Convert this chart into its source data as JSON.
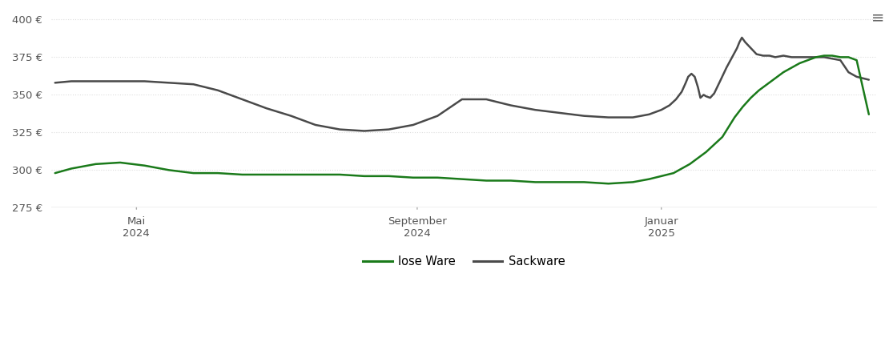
{
  "ylim": [
    275,
    405
  ],
  "yticks": [
    275,
    300,
    325,
    350,
    375,
    400
  ],
  "xtick_labels": [
    "Mai\n2024",
    "September\n2024",
    "Januar\n2025"
  ],
  "xtick_positions": [
    0.1,
    0.445,
    0.745
  ],
  "lose_ware_color": "#1a7a1a",
  "sackware_color": "#4a4a4a",
  "background_color": "#ffffff",
  "legend_labels": [
    "lose Ware",
    "Sackware"
  ],
  "lose_ware_x": [
    0.0,
    0.02,
    0.05,
    0.08,
    0.11,
    0.14,
    0.17,
    0.2,
    0.23,
    0.26,
    0.29,
    0.32,
    0.35,
    0.38,
    0.41,
    0.44,
    0.47,
    0.5,
    0.53,
    0.56,
    0.59,
    0.62,
    0.65,
    0.68,
    0.71,
    0.73,
    0.745,
    0.76,
    0.78,
    0.8,
    0.82,
    0.835,
    0.845,
    0.855,
    0.865,
    0.875,
    0.885,
    0.895,
    0.905,
    0.915,
    0.925,
    0.935,
    0.945,
    0.955,
    0.965,
    0.975,
    0.985,
    1.0
  ],
  "lose_ware_y": [
    298,
    301,
    304,
    305,
    303,
    300,
    298,
    298,
    297,
    297,
    297,
    297,
    297,
    296,
    296,
    295,
    295,
    294,
    293,
    293,
    292,
    292,
    292,
    291,
    292,
    294,
    296,
    298,
    304,
    312,
    322,
    335,
    342,
    348,
    353,
    357,
    361,
    365,
    368,
    371,
    373,
    375,
    376,
    376,
    375,
    375,
    373,
    337
  ],
  "sackware_x": [
    0.0,
    0.02,
    0.05,
    0.08,
    0.11,
    0.14,
    0.17,
    0.2,
    0.23,
    0.26,
    0.29,
    0.32,
    0.35,
    0.38,
    0.41,
    0.44,
    0.47,
    0.5,
    0.53,
    0.56,
    0.59,
    0.62,
    0.65,
    0.68,
    0.71,
    0.73,
    0.745,
    0.755,
    0.763,
    0.77,
    0.775,
    0.778,
    0.782,
    0.786,
    0.79,
    0.793,
    0.797,
    0.8,
    0.805,
    0.81,
    0.818,
    0.825,
    0.832,
    0.838,
    0.841,
    0.844,
    0.848,
    0.855,
    0.862,
    0.87,
    0.878,
    0.885,
    0.895,
    0.905,
    0.915,
    0.925,
    0.935,
    0.945,
    0.955,
    0.965,
    0.975,
    0.985,
    1.0
  ],
  "sackware_y": [
    358,
    359,
    359,
    359,
    359,
    358,
    357,
    353,
    347,
    341,
    336,
    330,
    327,
    326,
    327,
    330,
    336,
    347,
    347,
    343,
    340,
    338,
    336,
    335,
    335,
    337,
    340,
    343,
    347,
    352,
    358,
    362,
    364,
    362,
    355,
    348,
    350,
    349,
    348,
    351,
    360,
    368,
    375,
    381,
    385,
    388,
    385,
    381,
    377,
    376,
    376,
    375,
    376,
    375,
    375,
    375,
    375,
    375,
    374,
    373,
    365,
    362,
    360
  ]
}
